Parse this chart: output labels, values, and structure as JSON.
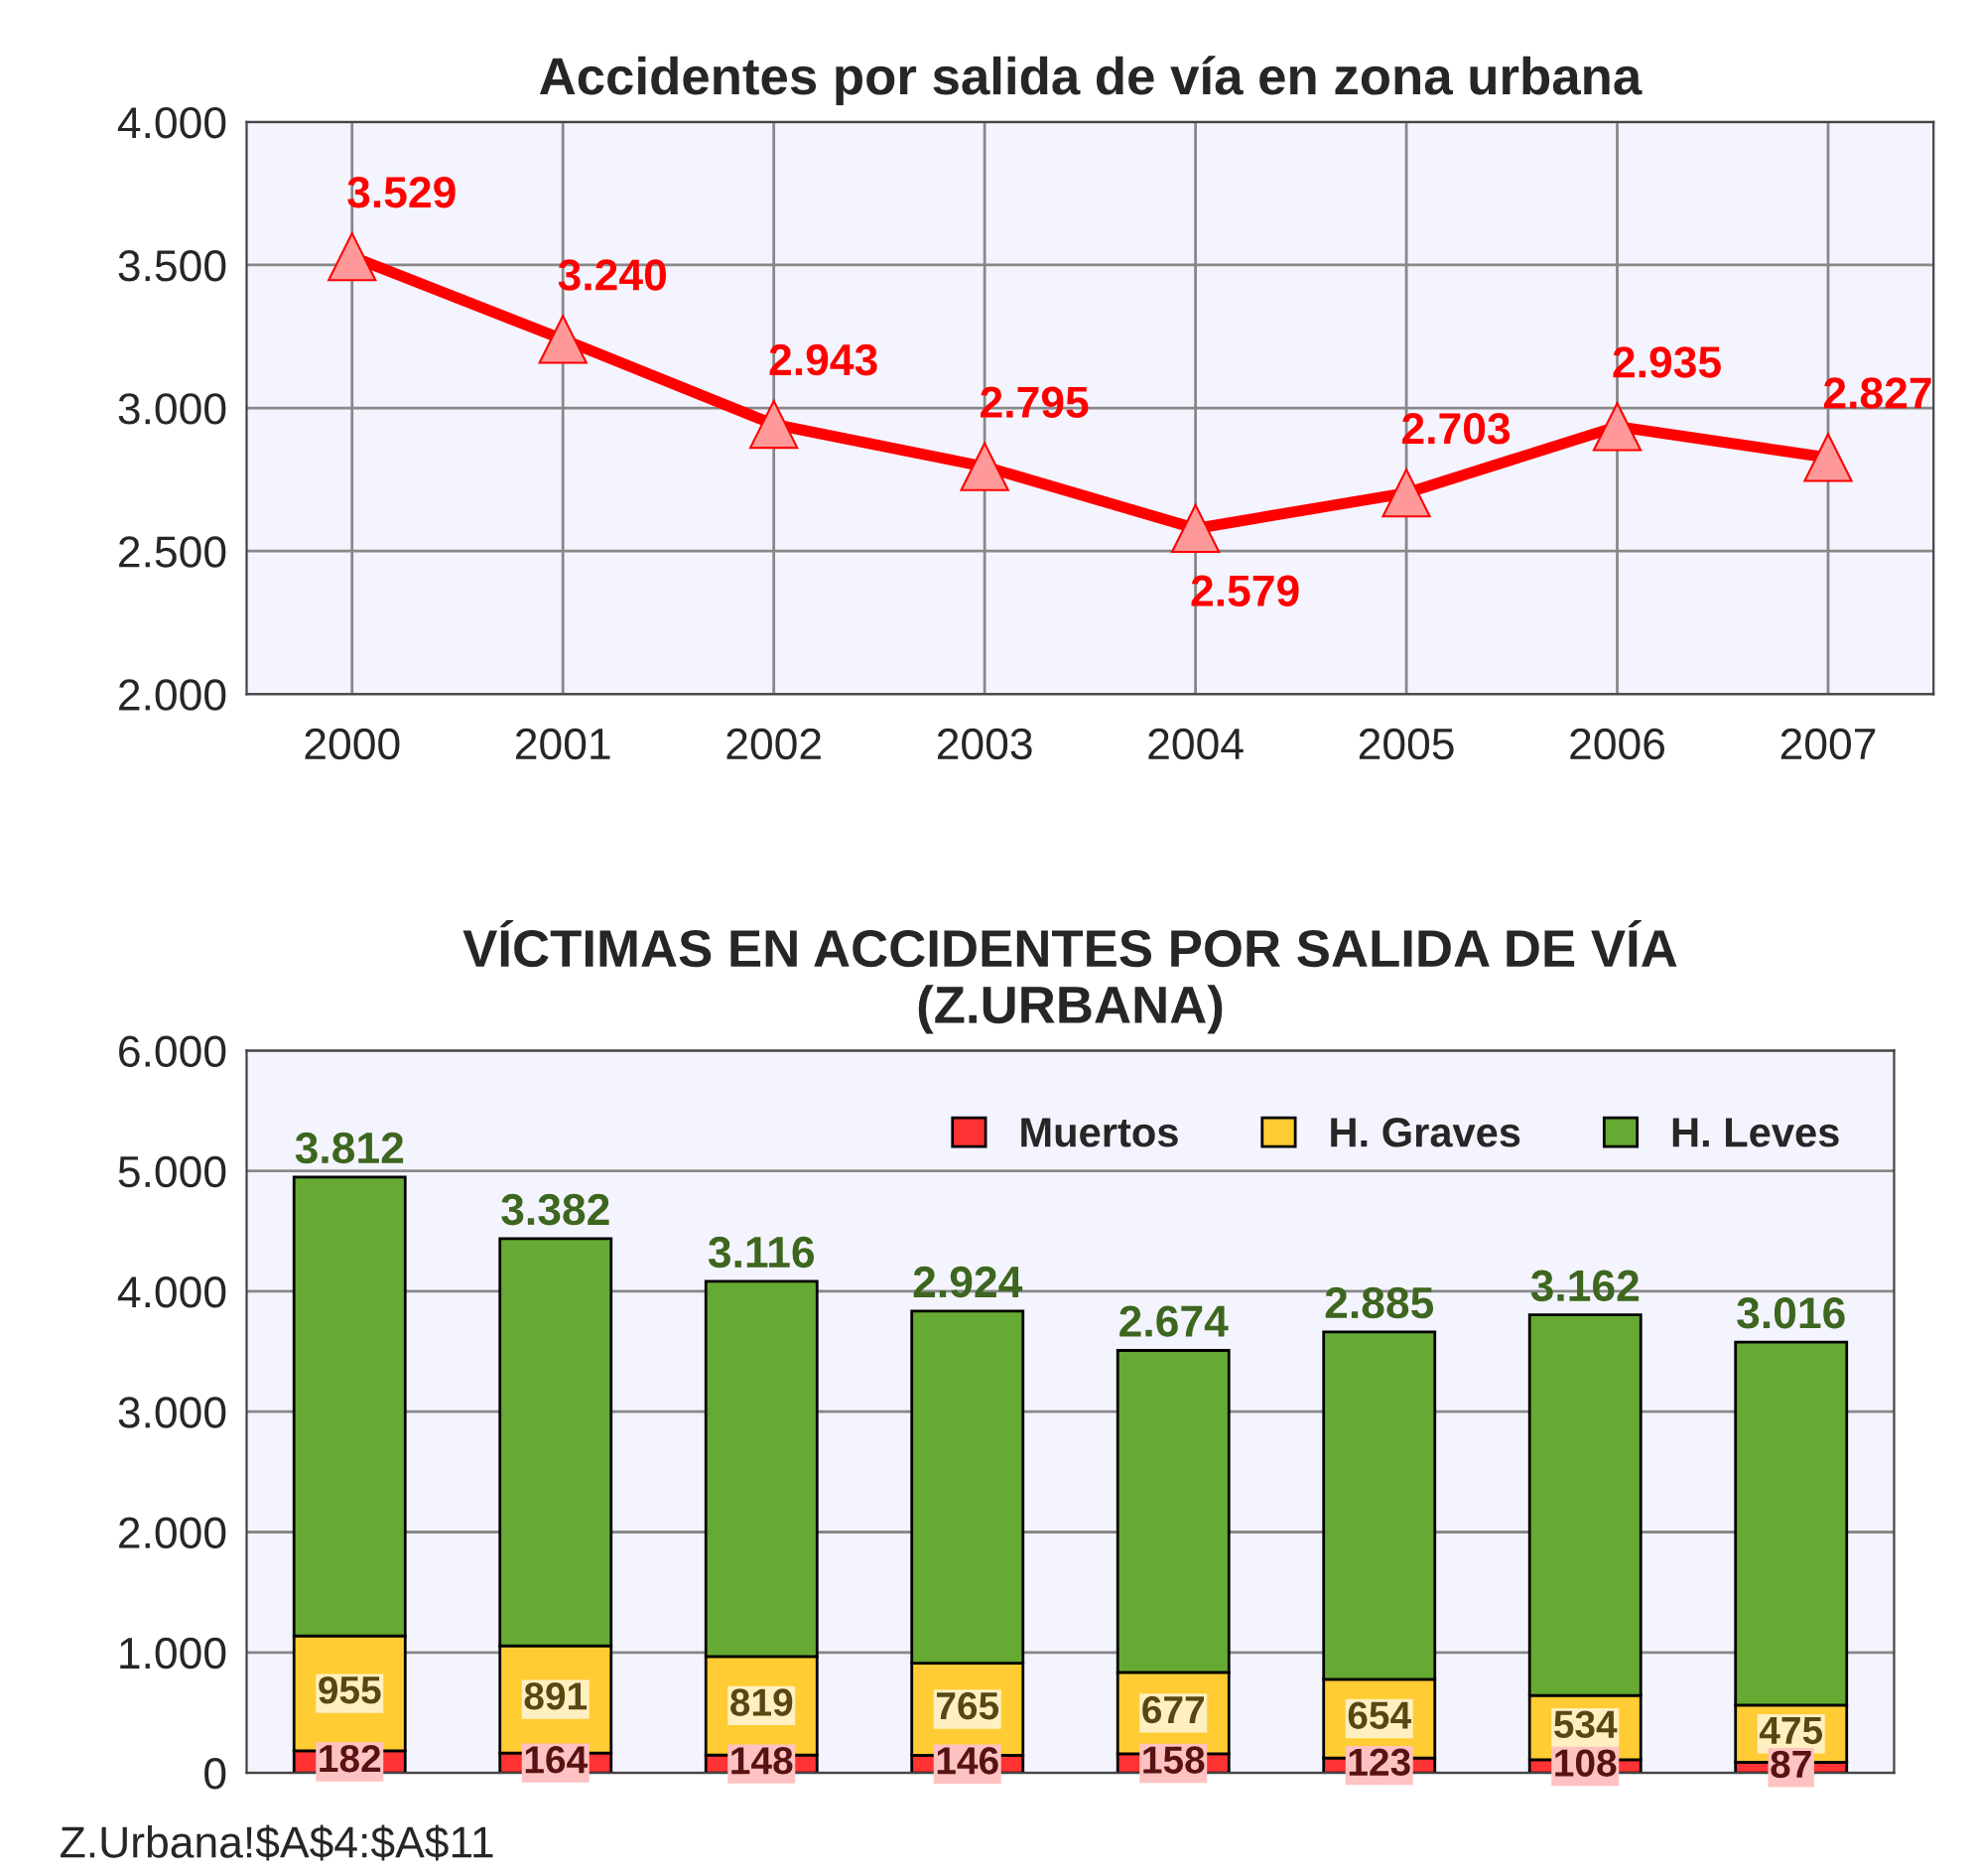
{
  "chart_data": [
    {
      "type": "line",
      "title": "Accidentes por salida de vía en zona urbana",
      "categories": [
        "2000",
        "2001",
        "2002",
        "2003",
        "2004",
        "2005",
        "2006",
        "2007"
      ],
      "series": [
        {
          "color": "#ff0000",
          "values": [
            3529,
            3240,
            2943,
            2795,
            2579,
            2703,
            2935,
            2827
          ],
          "value_labels": [
            "3.529",
            "3.240",
            "2.943",
            "2.795",
            "2.579",
            "2.703",
            "2.935",
            "2.827"
          ]
        }
      ],
      "ylim": [
        2000,
        4000
      ],
      "yticks": [
        {
          "value": 2000,
          "label": "2.000"
        },
        {
          "value": 2500,
          "label": "2.500"
        },
        {
          "value": 3000,
          "label": "3.000"
        },
        {
          "value": 3500,
          "label": "3.500"
        },
        {
          "value": 4000,
          "label": "4.000"
        }
      ],
      "grid": true,
      "marker": "triangle",
      "line_style": "solid",
      "legend": false
    },
    {
      "type": "bar",
      "title": "VÍCTIMAS EN ACCIDENTES POR SALIDA DE VÍA\n(Z.URBANA)",
      "stacked": true,
      "categories": [
        null,
        null,
        null,
        null,
        null,
        null,
        null,
        null
      ],
      "series": [
        {
          "name": "Muertos",
          "color": "#ff3333",
          "values": [
            182,
            164,
            148,
            146,
            158,
            123,
            108,
            87
          ],
          "value_labels": [
            "182",
            "164",
            "148",
            "146",
            "158",
            "123",
            "108",
            "87"
          ]
        },
        {
          "name": "H. Graves",
          "color": "#ffcc33",
          "values": [
            955,
            891,
            819,
            765,
            677,
            654,
            534,
            475
          ],
          "value_labels": [
            "955",
            "891",
            "819",
            "765",
            "677",
            "654",
            "534",
            "475"
          ]
        },
        {
          "name": "H. Leves",
          "color": "#66aa33",
          "values": [
            3812,
            3382,
            3116,
            2924,
            2674,
            2885,
            3162,
            3016
          ],
          "value_labels": [
            "3.812",
            "3.382",
            "3.116",
            "2.924",
            "2.674",
            "2.885",
            "3.162",
            "3.016"
          ]
        }
      ],
      "ylim": [
        0,
        6000
      ],
      "yticks": [
        {
          "value": 0,
          "label": "0"
        },
        {
          "value": 1000,
          "label": "1.000"
        },
        {
          "value": 2000,
          "label": "2.000"
        },
        {
          "value": 3000,
          "label": "3.000"
        },
        {
          "value": 4000,
          "label": "4.000"
        },
        {
          "value": 5000,
          "label": "5.000"
        },
        {
          "value": 6000,
          "label": "6.000"
        }
      ],
      "grid": "y",
      "legend": "top right",
      "annotations": [
        "Z.Urbana!$A$4:$A$11"
      ]
    }
  ]
}
